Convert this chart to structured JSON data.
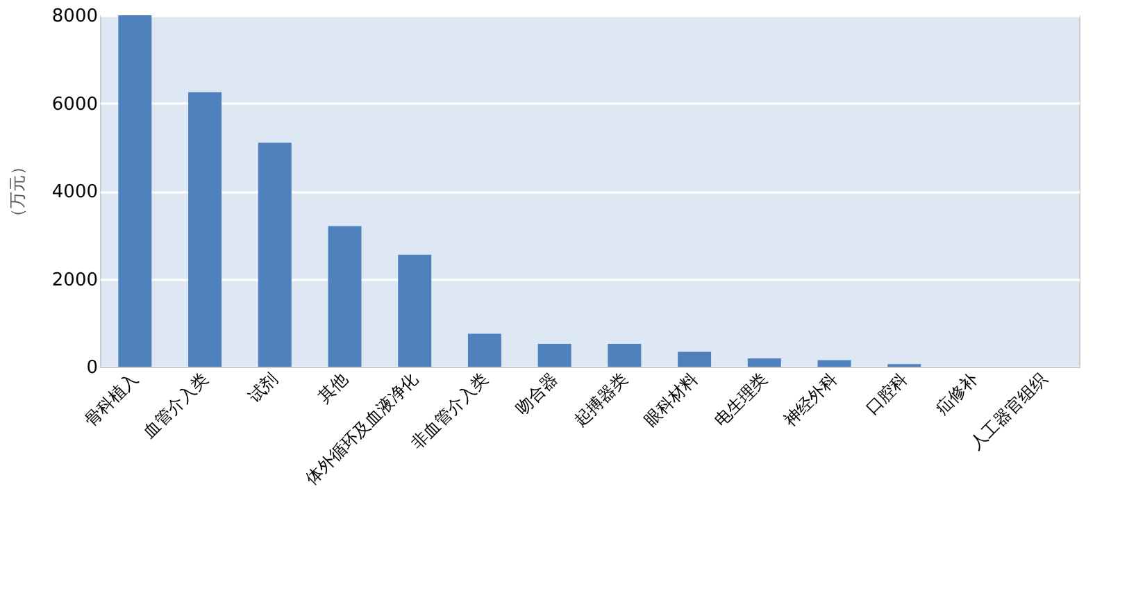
{
  "chart_data": {
    "type": "bar",
    "ylabel": "（万元）",
    "categories": [
      "骨科植入",
      "血管介入类",
      "试剂",
      "其他",
      "体外循环及血液净化",
      "非血管介入类",
      "吻合器",
      "起搏器类",
      "眼科材料",
      "电生理类",
      "神经外科",
      "口腔科",
      "疝修补",
      "人工器官组织"
    ],
    "values": [
      8000,
      6250,
      5100,
      3200,
      2550,
      750,
      520,
      520,
      340,
      190,
      150,
      60,
      0,
      0
    ],
    "color": "#4f81bd",
    "ylim": [
      0,
      8000
    ],
    "yticks": [
      0,
      2000,
      4000,
      6000,
      8000
    ],
    "grid": "y"
  }
}
